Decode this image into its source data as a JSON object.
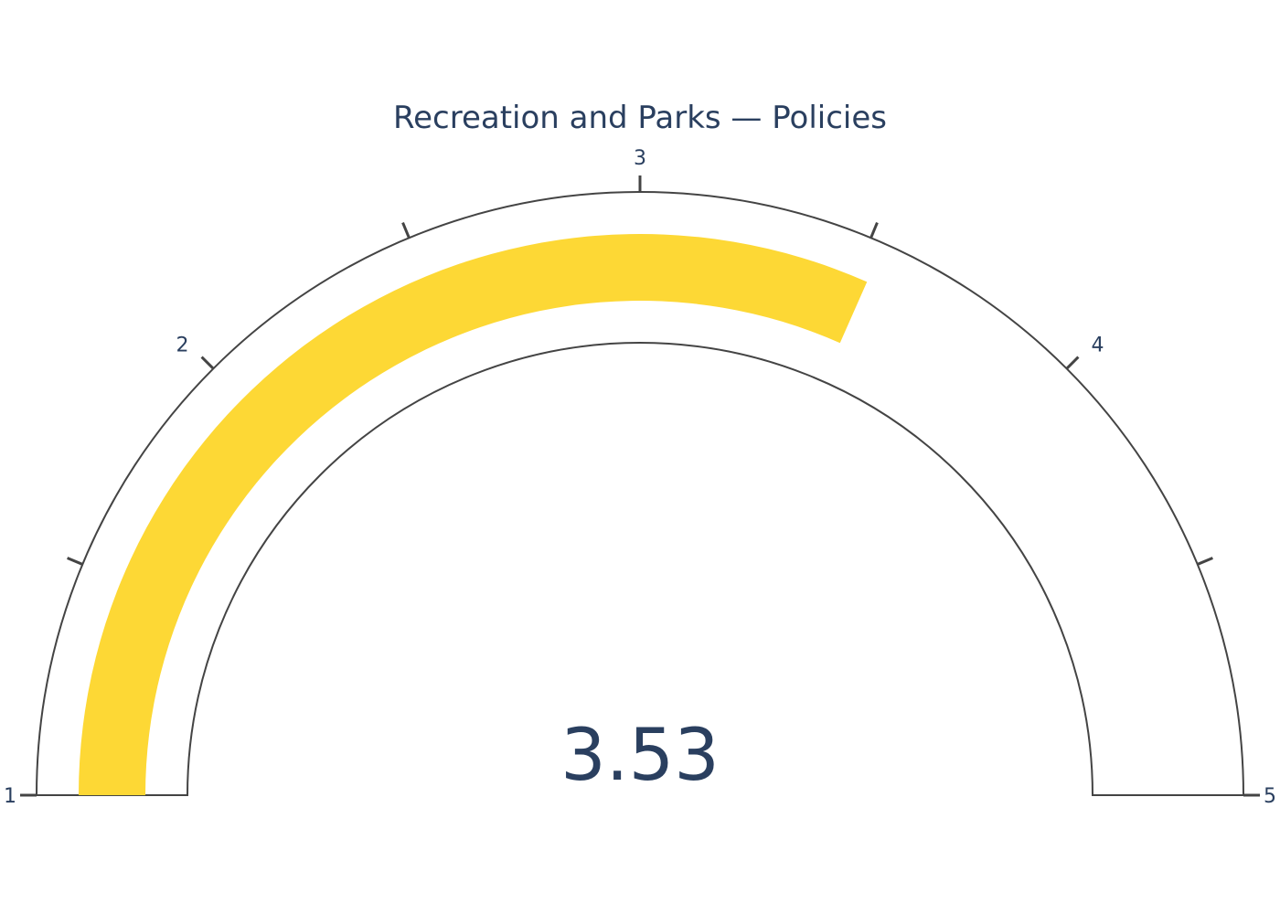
{
  "chart_data": {
    "type": "gauge",
    "title": "Recreation and Parks — Policies",
    "value": 3.53,
    "value_display": "3.53",
    "range": [
      1,
      5
    ],
    "major_ticks": [
      1,
      2,
      3,
      4,
      5
    ],
    "tick_labels": [
      "1",
      "2",
      "3",
      "4",
      "5"
    ],
    "minor_ticks": [
      1.5,
      2.5,
      3.5,
      4.5
    ],
    "colors": {
      "bar": "#fdd835",
      "outline": "#444444",
      "text": "#2a3f5f",
      "background": "#ffffff"
    }
  }
}
